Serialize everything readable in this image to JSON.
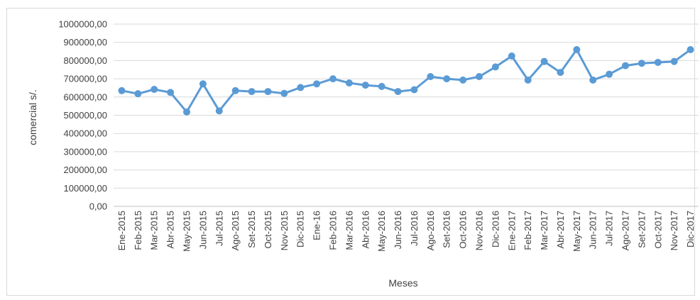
{
  "chart_data": {
    "type": "line",
    "title": "",
    "xlabel": "Meses",
    "ylabel": "comercial s/.",
    "ylim": [
      0,
      1000000
    ],
    "ytick_step": 100000,
    "ytick_labels": [
      "0,00",
      "100000,00",
      "200000,00",
      "300000,00",
      "400000,00",
      "500000,00",
      "600000,00",
      "700000,00",
      "800000,00",
      "900000,00",
      "1000000,00"
    ],
    "grid": true,
    "legend": "none",
    "line_color": "#5b9bd5",
    "categories": [
      "Ene-2015",
      "Feb-2015",
      "Mar-2015",
      "Abr-2015",
      "May-2015",
      "Jun-2015",
      "Jul-2015",
      "Ago-2015",
      "Set-2015",
      "Oct-2015",
      "Nov-2015",
      "Dic-2015",
      "Ene-16",
      "Feb-2016",
      "Mar-2016",
      "Abr-2016",
      "May-2016",
      "Jun-2016",
      "Jul-2016",
      "Ago-2016",
      "Set-2016",
      "Oct-2016",
      "Nov-2016",
      "Dic-2016",
      "Ene-2017",
      "Feb-2017",
      "Mar-2017",
      "Abr-2017",
      "May-2017",
      "Jun-2017",
      "Jul-2017",
      "Ago-2017",
      "Set-2017",
      "Oct-2017",
      "Nov-2017",
      "Dic-2017"
    ],
    "values": [
      635000,
      618000,
      642000,
      625000,
      518000,
      672000,
      524000,
      635000,
      630000,
      630000,
      620000,
      652000,
      672000,
      700000,
      677000,
      665000,
      658000,
      630000,
      640000,
      712000,
      700000,
      693000,
      712000,
      765000,
      825000,
      693000,
      795000,
      735000,
      860000,
      693000,
      725000,
      772000,
      785000,
      790000,
      795000,
      860000
    ]
  }
}
